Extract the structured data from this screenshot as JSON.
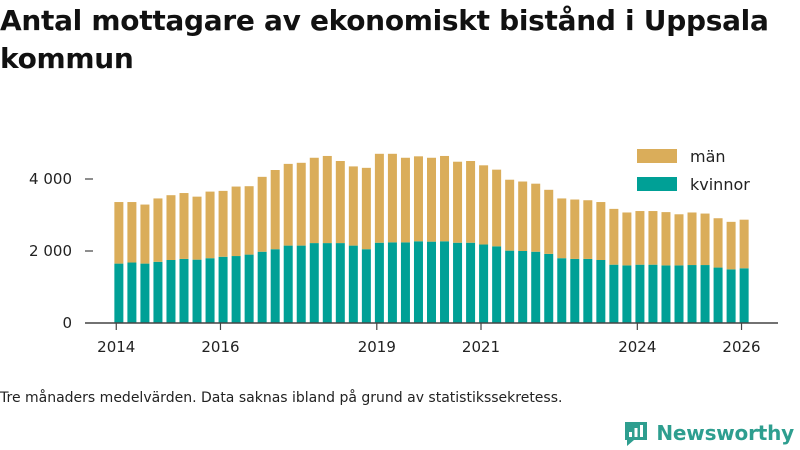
{
  "title": "Antal mottagare av ekonomiskt bistånd i Uppsala kommun",
  "note": "Tre månaders medelvärden. Data saknas ibland på grund av statistikssekretess.",
  "brand": {
    "name": "Newsworthy",
    "logo_icon": "chart-bubble-icon"
  },
  "colors": {
    "women": "#00a096",
    "men": "#daad5a",
    "axis": "#444444",
    "grid": "#d0d0d0",
    "brand": "#2e9e8f"
  },
  "chart_data": {
    "type": "bar",
    "stacked": true,
    "x_tick_labels": [
      "2014",
      "2016",
      "2019",
      "2021",
      "2024",
      "2026"
    ],
    "y_ticks": [
      0,
      2000,
      4000
    ],
    "y_tick_labels": [
      "0",
      "2 000",
      "4 000"
    ],
    "ylim": [
      0,
      5000
    ],
    "legend": [
      "män",
      "kvinnor"
    ],
    "legend_position": "top-right",
    "grid": false,
    "series": [
      {
        "name": "kvinnor",
        "values": [
          1650,
          1680,
          1650,
          1700,
          1750,
          1780,
          1760,
          1800,
          1840,
          1860,
          1900,
          1980,
          2050,
          2150,
          2150,
          2220,
          2220,
          2220,
          2150,
          2050,
          2230,
          2240,
          2240,
          2270,
          2260,
          2270,
          2230,
          2230,
          2180,
          2130,
          2010,
          2000,
          1980,
          1920,
          1800,
          1780,
          1780,
          1750,
          1620,
          1600,
          1620,
          1620,
          1600,
          1600,
          1610,
          1610,
          1540,
          1490,
          1520
        ]
      },
      {
        "name": "män",
        "values": [
          1710,
          1680,
          1640,
          1760,
          1800,
          1830,
          1750,
          1850,
          1830,
          1930,
          1900,
          2080,
          2200,
          2270,
          2300,
          2370,
          2420,
          2280,
          2200,
          2260,
          2470,
          2460,
          2350,
          2360,
          2330,
          2370,
          2250,
          2270,
          2200,
          2130,
          1970,
          1930,
          1890,
          1780,
          1660,
          1650,
          1630,
          1610,
          1550,
          1470,
          1490,
          1490,
          1480,
          1420,
          1460,
          1430,
          1370,
          1320,
          1350
        ]
      }
    ],
    "x_range": [
      2013.4,
      2026.7
    ],
    "period_start": 2014.0,
    "period_step": 0.25
  }
}
